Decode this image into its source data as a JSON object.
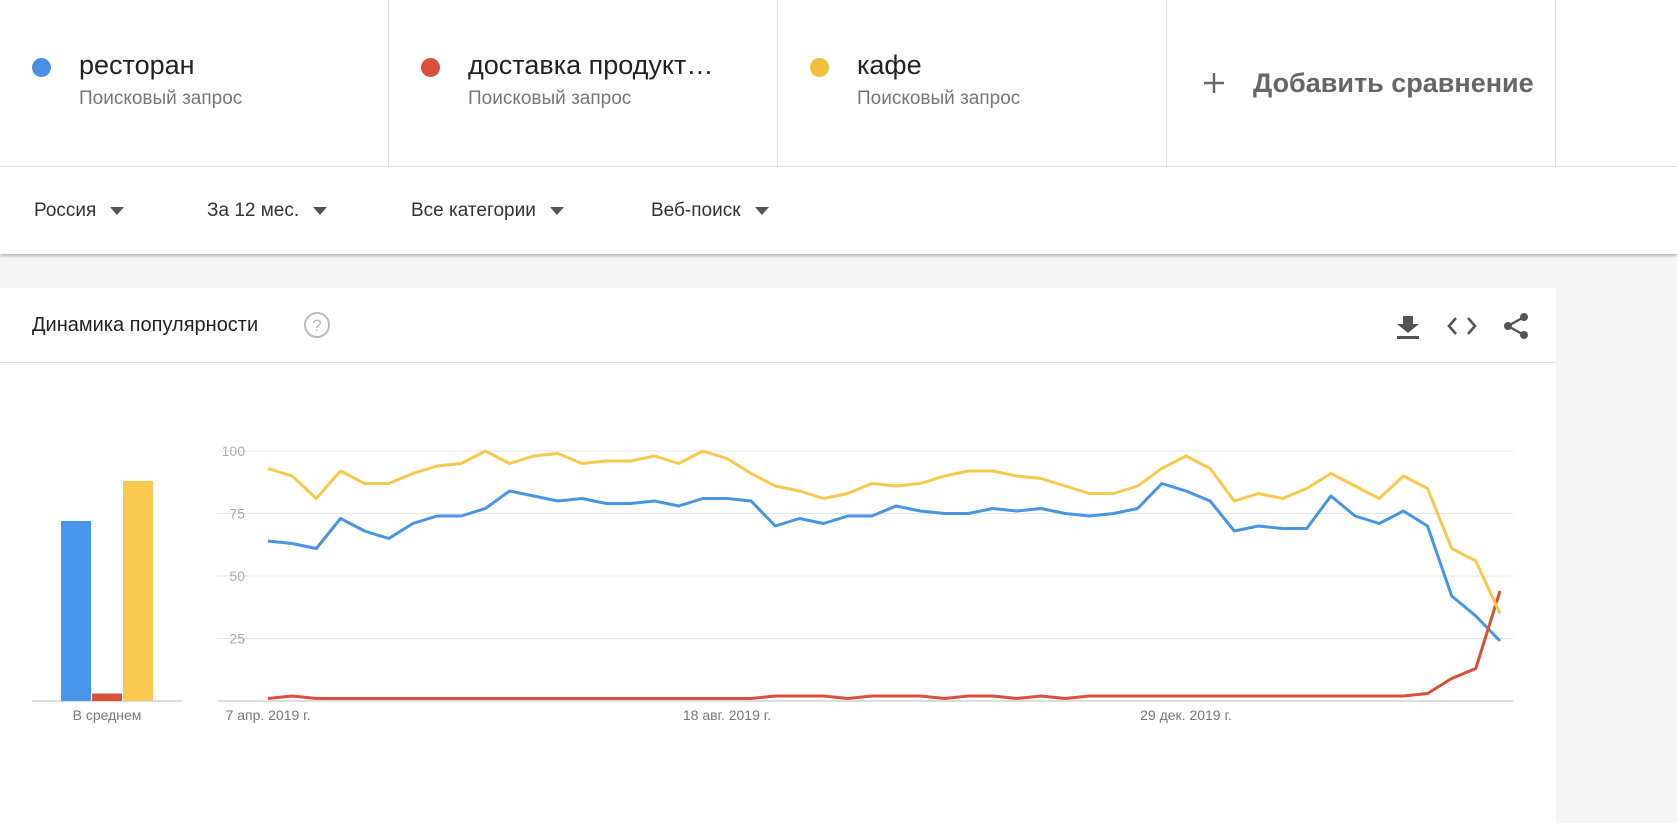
{
  "header": {
    "terms": [
      {
        "name": "ресторан",
        "sub": "Поисковый запрос",
        "color": "#4a8fe6"
      },
      {
        "name": "доставка продукт…",
        "sub": "Поисковый запрос",
        "color": "#d9503b"
      },
      {
        "name": "кафе",
        "sub": "Поисковый запрос",
        "color": "#f0bf3c"
      }
    ],
    "add": "Добавить сравнение"
  },
  "filters": [
    "Россия",
    "За 12 мес.",
    "Все категории",
    "Веб-поиск"
  ],
  "panel": {
    "title": "Динамика популярности"
  },
  "chart_data": [
    {
      "type": "bar",
      "categories": [
        "В среднем"
      ],
      "series": [
        {
          "name": "ресторан",
          "color": "#4796ec",
          "values": [
            72
          ]
        },
        {
          "name": "доставка продукт…",
          "color": "#d9503b",
          "values": [
            3
          ]
        },
        {
          "name": "кафе",
          "color": "#f9ca4f",
          "values": [
            88
          ]
        }
      ]
    },
    {
      "type": "line",
      "categories": [
        "7 апр. 2019 г.",
        null,
        null,
        null,
        null,
        null,
        null,
        null,
        null,
        null,
        null,
        null,
        null,
        null,
        null,
        null,
        null,
        null,
        null,
        "18 авг. 2019 г.",
        null,
        null,
        null,
        null,
        null,
        null,
        null,
        null,
        null,
        null,
        null,
        null,
        null,
        null,
        null,
        null,
        null,
        null,
        "29 дек. 2019 г.",
        null,
        null,
        null,
        null,
        null,
        null,
        null,
        null,
        null,
        null,
        null,
        null,
        null
      ],
      "ylim": [
        0,
        100
      ],
      "yticks": [
        25,
        50,
        75,
        100
      ],
      "grid": true,
      "series": [
        {
          "name": "ресторан",
          "color": "#4a94e6",
          "values": [
            64,
            63,
            61,
            73,
            68,
            65,
            71,
            74,
            74,
            77,
            84,
            82,
            80,
            81,
            79,
            79,
            80,
            78,
            81,
            81,
            80,
            70,
            73,
            71,
            74,
            74,
            78,
            76,
            75,
            75,
            77,
            76,
            77,
            75,
            74,
            75,
            77,
            87,
            84,
            80,
            68,
            70,
            69,
            69,
            82,
            74,
            71,
            76,
            70,
            42,
            34,
            24
          ]
        },
        {
          "name": "доставка продукт…",
          "color": "#d9503b",
          "values": [
            1,
            2,
            1,
            1,
            1,
            1,
            1,
            1,
            1,
            1,
            1,
            1,
            1,
            1,
            1,
            1,
            1,
            1,
            1,
            1,
            1,
            2,
            2,
            2,
            1,
            2,
            2,
            2,
            1,
            2,
            2,
            1,
            2,
            1,
            2,
            2,
            2,
            2,
            2,
            2,
            2,
            2,
            2,
            2,
            2,
            2,
            2,
            2,
            3,
            9,
            13,
            44
          ]
        },
        {
          "name": "кафе",
          "color": "#f6c94d",
          "values": [
            93,
            90,
            81,
            92,
            87,
            87,
            91,
            94,
            95,
            100,
            95,
            98,
            99,
            95,
            96,
            96,
            98,
            95,
            100,
            97,
            91,
            86,
            84,
            81,
            83,
            87,
            86,
            87,
            90,
            92,
            92,
            90,
            89,
            86,
            83,
            83,
            86,
            93,
            98,
            93,
            80,
            83,
            81,
            85,
            91,
            86,
            81,
            90,
            85,
            61,
            56,
            35
          ]
        }
      ]
    }
  ]
}
